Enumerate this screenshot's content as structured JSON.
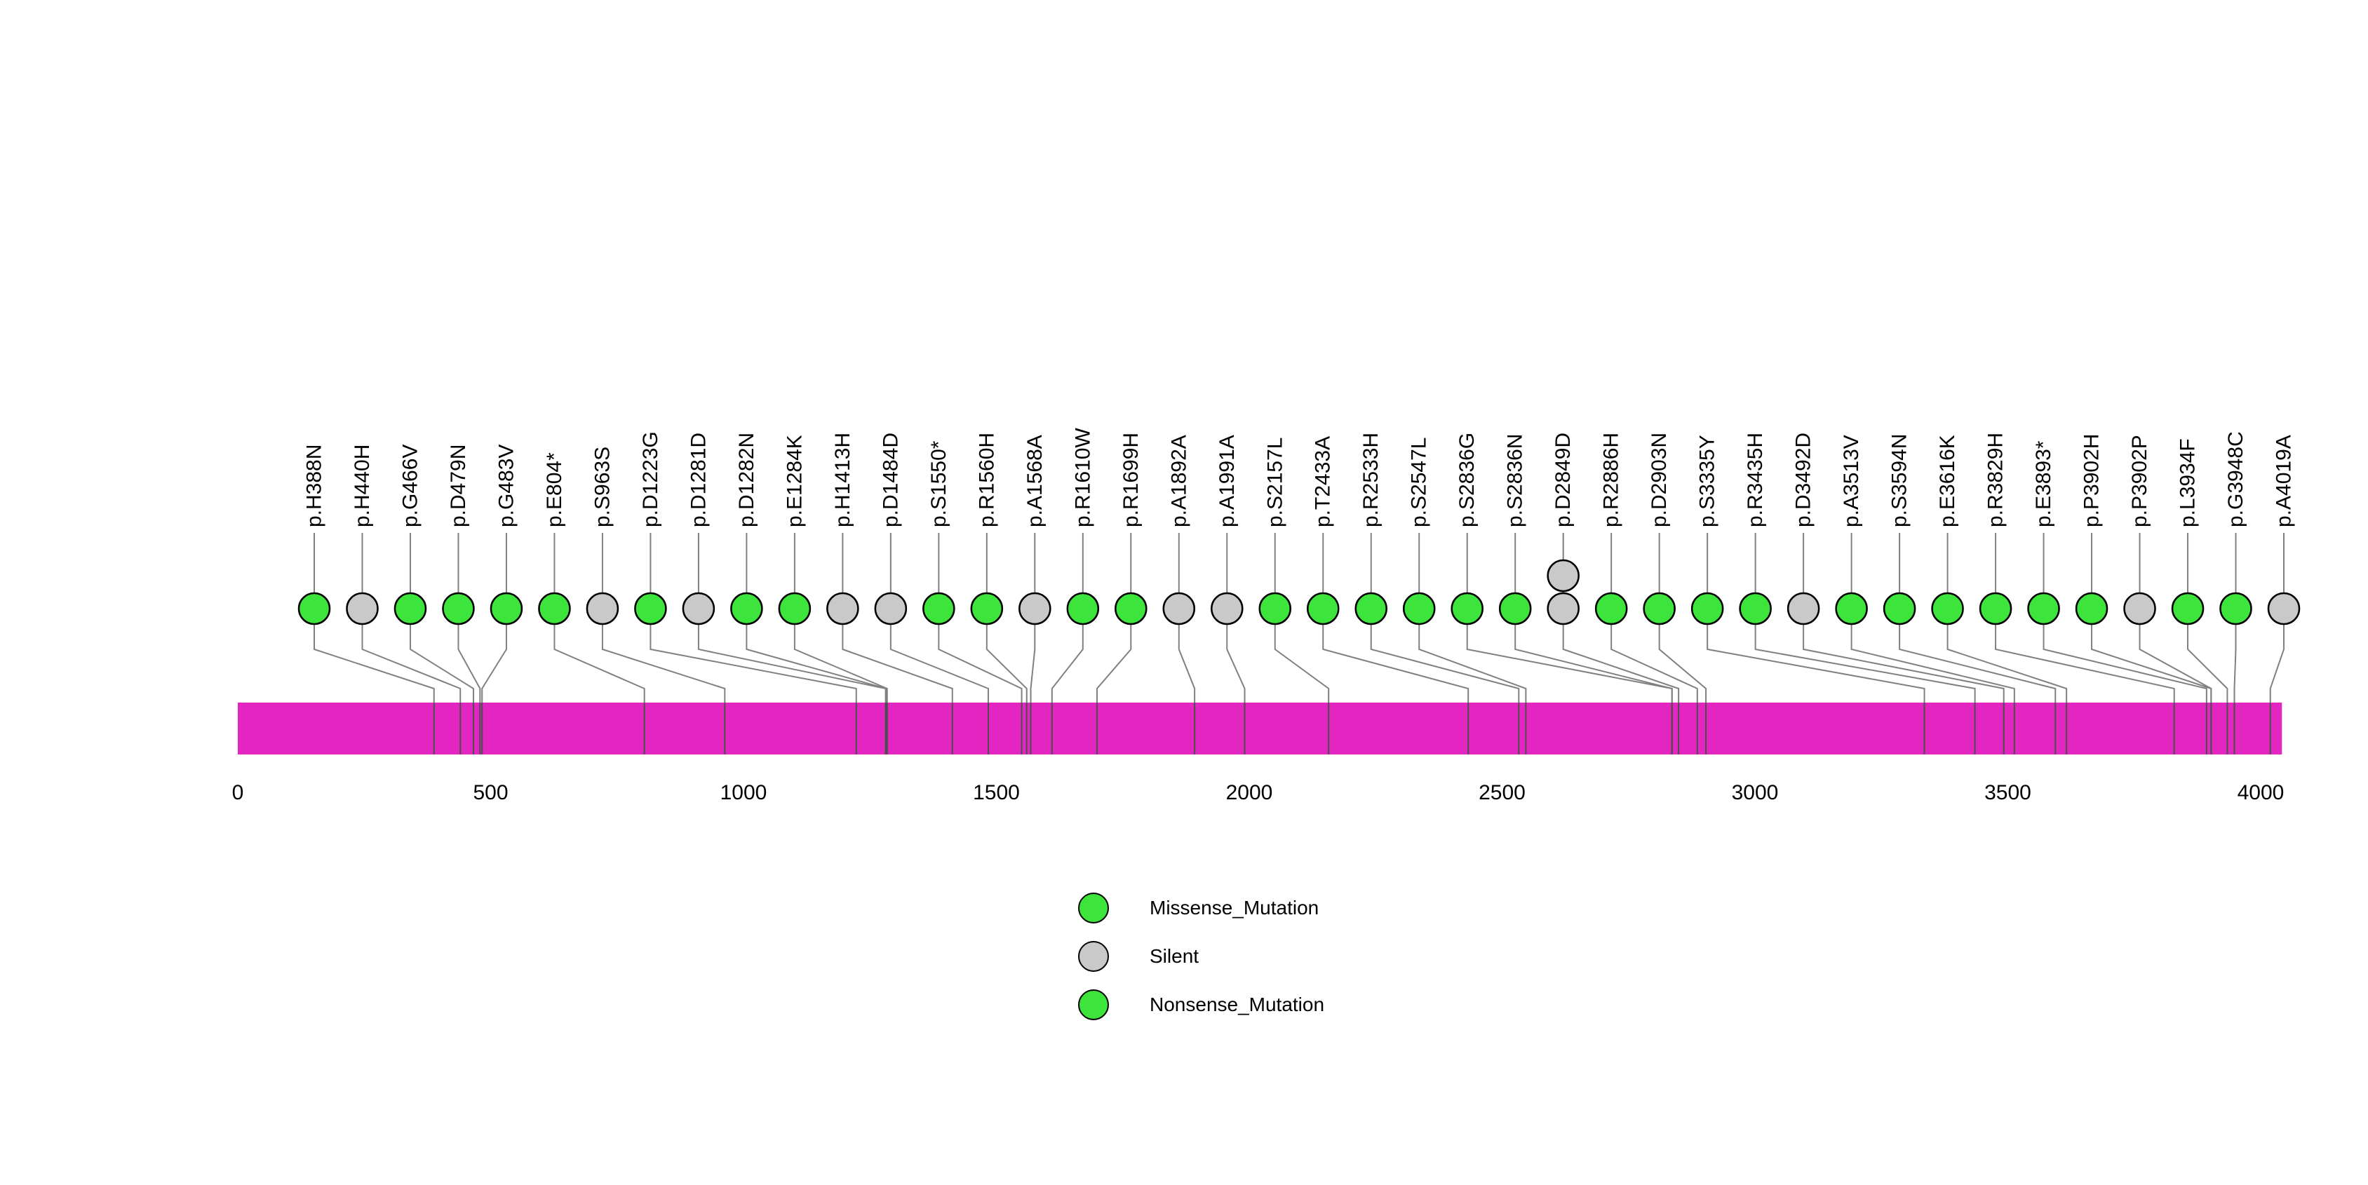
{
  "chart_data": {
    "type": "lollipop",
    "title": "",
    "axis": {
      "min": 0,
      "max": 4042,
      "ticks": [
        0,
        500,
        1000,
        1500,
        2000,
        2500,
        3000,
        3500,
        4000
      ]
    },
    "protein_bar": {
      "start": 0,
      "end": 4042,
      "color": "#E326C1"
    },
    "colors": {
      "Missense_Mutation": "#3CE43C",
      "Silent": "#C9C9C9",
      "Nonsense_Mutation": "#3CE43C"
    },
    "legend": [
      {
        "label": "Missense_Mutation",
        "color": "#3CE43C"
      },
      {
        "label": "Silent",
        "color": "#C9C9C9"
      },
      {
        "label": "Nonsense_Mutation",
        "color": "#3CE43C"
      }
    ],
    "mutations": [
      {
        "label": "p.H388N",
        "pos": 388,
        "type": "Missense_Mutation",
        "count": 1
      },
      {
        "label": "p.H440H",
        "pos": 440,
        "type": "Silent",
        "count": 1
      },
      {
        "label": "p.G466V",
        "pos": 466,
        "type": "Missense_Mutation",
        "count": 1
      },
      {
        "label": "p.D479N",
        "pos": 479,
        "type": "Missense_Mutation",
        "count": 1
      },
      {
        "label": "p.G483V",
        "pos": 483,
        "type": "Missense_Mutation",
        "count": 1
      },
      {
        "label": "p.E804*",
        "pos": 804,
        "type": "Nonsense_Mutation",
        "count": 1
      },
      {
        "label": "p.S963S",
        "pos": 963,
        "type": "Silent",
        "count": 1
      },
      {
        "label": "p.D1223G",
        "pos": 1223,
        "type": "Missense_Mutation",
        "count": 1
      },
      {
        "label": "p.D1281D",
        "pos": 1281,
        "type": "Silent",
        "count": 1
      },
      {
        "label": "p.D1282N",
        "pos": 1282,
        "type": "Missense_Mutation",
        "count": 1
      },
      {
        "label": "p.E1284K",
        "pos": 1284,
        "type": "Missense_Mutation",
        "count": 1
      },
      {
        "label": "p.H1413H",
        "pos": 1413,
        "type": "Silent",
        "count": 1
      },
      {
        "label": "p.D1484D",
        "pos": 1484,
        "type": "Silent",
        "count": 1
      },
      {
        "label": "p.S1550*",
        "pos": 1550,
        "type": "Nonsense_Mutation",
        "count": 1
      },
      {
        "label": "p.R1560H",
        "pos": 1560,
        "type": "Missense_Mutation",
        "count": 1
      },
      {
        "label": "p.A1568A",
        "pos": 1568,
        "type": "Silent",
        "count": 1
      },
      {
        "label": "p.R1610W",
        "pos": 1610,
        "type": "Missense_Mutation",
        "count": 1
      },
      {
        "label": "p.R1699H",
        "pos": 1699,
        "type": "Missense_Mutation",
        "count": 1
      },
      {
        "label": "p.A1892A",
        "pos": 1892,
        "type": "Silent",
        "count": 1
      },
      {
        "label": "p.A1991A",
        "pos": 1991,
        "type": "Silent",
        "count": 1
      },
      {
        "label": "p.S2157L",
        "pos": 2157,
        "type": "Missense_Mutation",
        "count": 1
      },
      {
        "label": "p.T2433A",
        "pos": 2433,
        "type": "Missense_Mutation",
        "count": 1
      },
      {
        "label": "p.R2533H",
        "pos": 2533,
        "type": "Missense_Mutation",
        "count": 1
      },
      {
        "label": "p.S2547L",
        "pos": 2547,
        "type": "Missense_Mutation",
        "count": 1
      },
      {
        "label": "p.S2836G",
        "pos": 2836,
        "type": "Missense_Mutation",
        "count": 1
      },
      {
        "label": "p.S2836N",
        "pos": 2836,
        "type": "Missense_Mutation",
        "count": 1
      },
      {
        "label": "p.D2849D",
        "pos": 2849,
        "type": "Silent",
        "count": 2
      },
      {
        "label": "p.R2886H",
        "pos": 2886,
        "type": "Missense_Mutation",
        "count": 1
      },
      {
        "label": "p.D2903N",
        "pos": 2903,
        "type": "Missense_Mutation",
        "count": 1
      },
      {
        "label": "p.S3335Y",
        "pos": 3335,
        "type": "Missense_Mutation",
        "count": 1
      },
      {
        "label": "p.R3435H",
        "pos": 3435,
        "type": "Missense_Mutation",
        "count": 1
      },
      {
        "label": "p.D3492D",
        "pos": 3492,
        "type": "Silent",
        "count": 1
      },
      {
        "label": "p.A3513V",
        "pos": 3513,
        "type": "Missense_Mutation",
        "count": 1
      },
      {
        "label": "p.S3594N",
        "pos": 3594,
        "type": "Missense_Mutation",
        "count": 1
      },
      {
        "label": "p.E3616K",
        "pos": 3616,
        "type": "Missense_Mutation",
        "count": 1
      },
      {
        "label": "p.R3829H",
        "pos": 3829,
        "type": "Missense_Mutation",
        "count": 1
      },
      {
        "label": "p.E3893*",
        "pos": 3893,
        "type": "Nonsense_Mutation",
        "count": 1
      },
      {
        "label": "p.P3902H",
        "pos": 3902,
        "type": "Missense_Mutation",
        "count": 1
      },
      {
        "label": "p.P3902P",
        "pos": 3902,
        "type": "Silent",
        "count": 1
      },
      {
        "label": "p.L3934F",
        "pos": 3934,
        "type": "Missense_Mutation",
        "count": 1
      },
      {
        "label": "p.G3948C",
        "pos": 3948,
        "type": "Missense_Mutation",
        "count": 1
      },
      {
        "label": "p.A4019A",
        "pos": 4019,
        "type": "Silent",
        "count": 1
      }
    ]
  }
}
